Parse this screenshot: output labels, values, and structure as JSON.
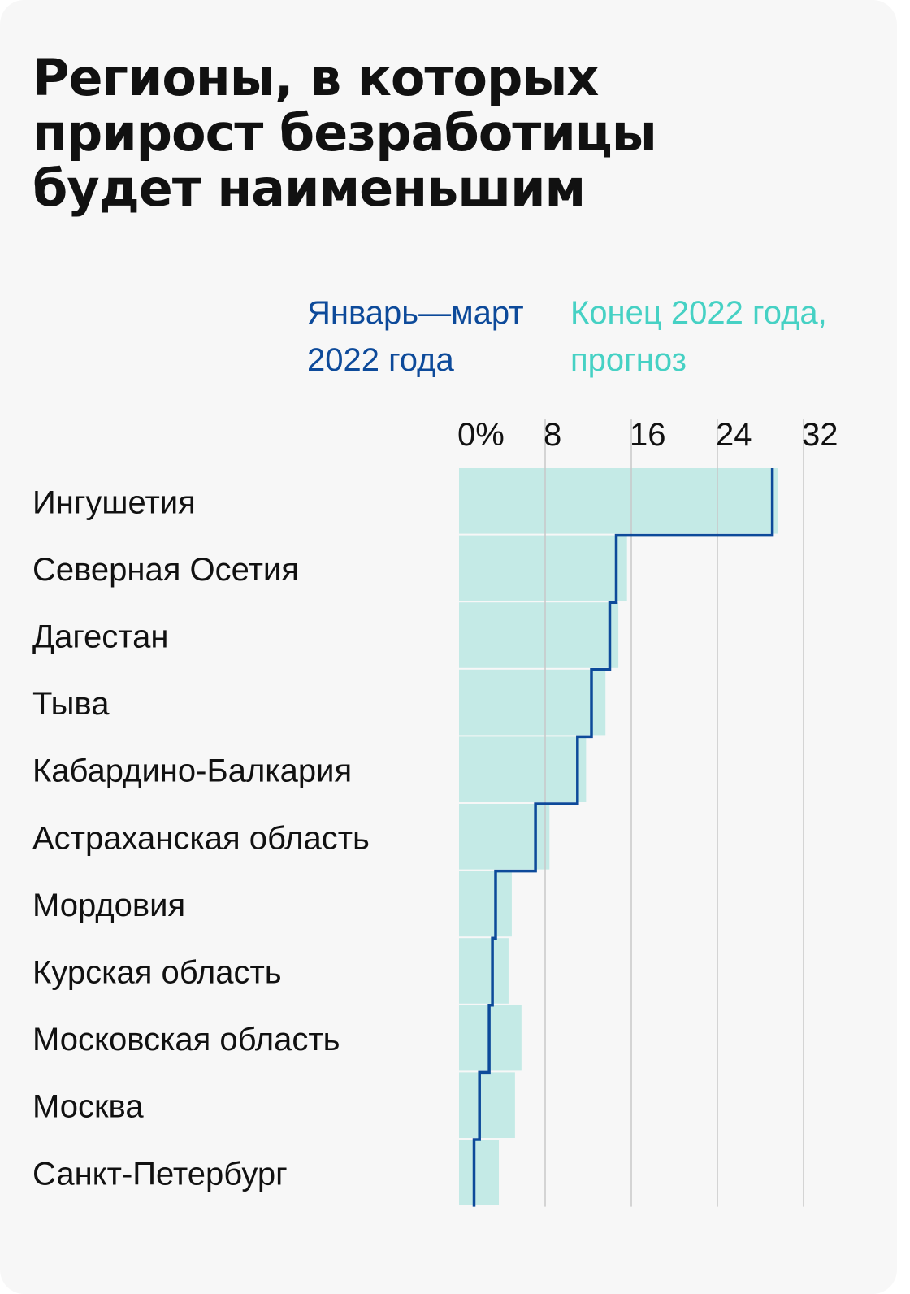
{
  "title_lines": [
    "Регионы, в которых",
    "прирост безработицы",
    "будет наименьшим"
  ],
  "legend": {
    "q1": [
      "Январь—март",
      "2022 года"
    ],
    "forecast": [
      "Конец 2022 года,",
      "прогноз"
    ]
  },
  "colors": {
    "background": "#f7f7f7",
    "forecast_bar": "#c4eae6",
    "q1_line": "#0d4a9a",
    "q1_legend": "#0d4a9a",
    "forecast_legend": "#46d1c4",
    "gridline": "#c8c8c8"
  },
  "chart_data": {
    "type": "bar",
    "orientation": "horizontal",
    "categories": [
      "Ингушетия",
      "Северная Осетия",
      "Дагестан",
      "Тыва",
      "Кабардино-Балкария",
      "Астраханская область",
      "Мордовия",
      "Курская область",
      "Московская область",
      "Москва",
      "Санкт-Петербург"
    ],
    "series": [
      {
        "name": "Конец 2022 года, прогноз",
        "mark": "bar",
        "values": [
          29.6,
          15.6,
          14.8,
          13.6,
          11.8,
          8.4,
          4.9,
          4.6,
          5.8,
          5.2,
          3.7
        ]
      },
      {
        "name": "Январь—март 2022 года",
        "mark": "step-line",
        "values": [
          29.1,
          14.6,
          14.0,
          12.3,
          11.0,
          7.1,
          3.4,
          3.1,
          2.8,
          1.9,
          1.4
        ]
      }
    ],
    "ticks": [
      {
        "value": 0,
        "label": "0%"
      },
      {
        "value": 8,
        "label": "8"
      },
      {
        "value": 16,
        "label": "16"
      },
      {
        "value": 24,
        "label": "24"
      },
      {
        "value": 32,
        "label": "32"
      }
    ],
    "xlim": [
      0,
      32
    ],
    "grid": true,
    "legend_position": "top"
  }
}
